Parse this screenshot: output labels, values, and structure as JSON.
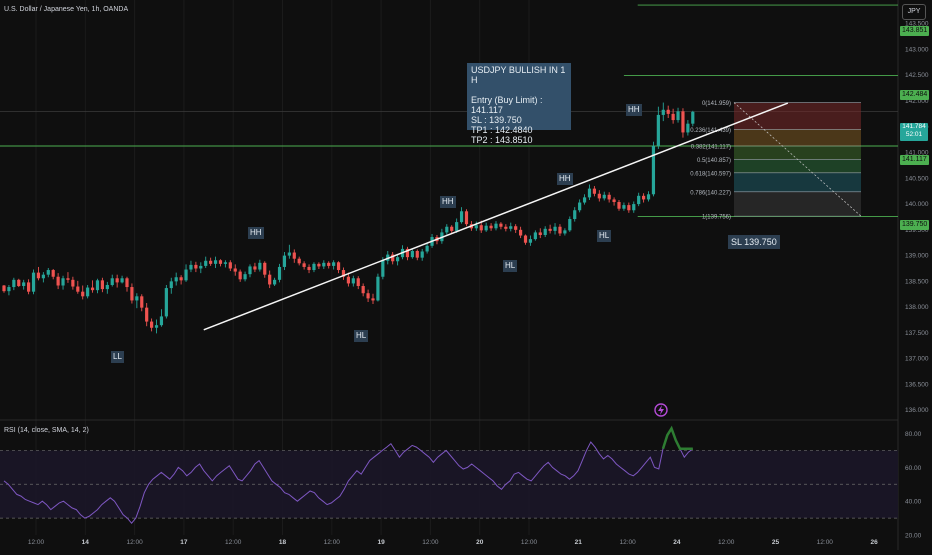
{
  "header": {
    "symbol_title": "U.S. Dollar / Japanese Yen, 1h, OANDA",
    "currency_button": "JPY"
  },
  "setup_box": {
    "title": "USDJPY BULLISH IN 1 H",
    "entry": "Entry (Buy Limit) :  141.117",
    "sl": "SL : 139.750",
    "tp1": "TP1 :  142.4840",
    "tp2": "TP2 :  143.8510"
  },
  "sl_note": "SL 139.750",
  "pivot_labels": [
    "LL",
    "HH",
    "HL",
    "HH",
    "HL",
    "HH",
    "HL",
    "HH"
  ],
  "current_price": {
    "price": "141.784",
    "countdown": "52:01",
    "color": "#26a69a"
  },
  "level_badges": [
    {
      "text": "143.851",
      "color": "#4caf50"
    },
    {
      "text": "142.484",
      "color": "#4caf50"
    },
    {
      "text": "141.117",
      "color": "#4caf50"
    },
    {
      "text": "139.750",
      "color": "#4caf50"
    }
  ],
  "fib_levels": [
    {
      "ratio": "0",
      "label": "0(141.959)",
      "value": 141.959
    },
    {
      "ratio": "0.236",
      "label": "0.236(141.439)",
      "value": 141.439
    },
    {
      "ratio": "0.382",
      "label": "0.382(141.117)",
      "value": 141.117
    },
    {
      "ratio": "0.5",
      "label": "0.5(140.857)",
      "value": 140.857
    },
    {
      "ratio": "0.618",
      "label": "0.618(140.597)",
      "value": 140.597
    },
    {
      "ratio": "0.786",
      "label": "0.786(140.227)",
      "value": 140.227
    },
    {
      "ratio": "1",
      "label": "1(139.756)",
      "value": 139.756
    }
  ],
  "rsi": {
    "title": "RSI (14, close, SMA, 14, 2)",
    "ticks": [
      "80.00",
      "60.00",
      "40.00",
      "20.00"
    ]
  },
  "chart_data": {
    "type": "candlestick",
    "title": "U.S. Dollar / Japanese Yen, 1h, OANDA",
    "y_ticks": [
      "143.500",
      "143.000",
      "142.500",
      "142.000",
      "141.500",
      "141.000",
      "140.500",
      "140.000",
      "139.500",
      "139.000",
      "138.500",
      "138.000",
      "137.500",
      "137.000",
      "136.500",
      "136.000"
    ],
    "x_ticks": [
      "12:00",
      "14",
      "12:00",
      "17",
      "12:00",
      "18",
      "12:00",
      "19",
      "12:00",
      "20",
      "12:00",
      "21",
      "12:00",
      "24",
      "12:00",
      "25",
      "12:00",
      "26"
    ],
    "ylim": [
      135.8,
      143.95
    ],
    "horizontal_levels": [
      143.851,
      142.484,
      141.117,
      139.75
    ],
    "pivots": [
      {
        "label": "LL",
        "price": 137.48
      },
      {
        "label": "HH",
        "price": 139.2
      },
      {
        "label": "HL",
        "price": 137.55
      },
      {
        "label": "HH",
        "price": 139.93
      },
      {
        "label": "HL",
        "price": 139.18
      },
      {
        "label": "HH",
        "price": 140.37
      },
      {
        "label": "HL",
        "price": 139.76
      },
      {
        "label": "HH",
        "price": 141.96
      }
    ],
    "trendline": {
      "from": 137.55,
      "to": 141.95
    },
    "rsi_levels": [
      70,
      50,
      30
    ],
    "rsi_ylim": [
      20,
      88
    ],
    "rsi_values": [
      52,
      50,
      47,
      44,
      43,
      41,
      40,
      39,
      38,
      40,
      38,
      35,
      37,
      39,
      40,
      38,
      36,
      35,
      32,
      30,
      31,
      33,
      35,
      38,
      40,
      42,
      40,
      36,
      32,
      30,
      27,
      30,
      37,
      45,
      50,
      53,
      55,
      57,
      55,
      53,
      56,
      60,
      58,
      55,
      57,
      60,
      62,
      58,
      55,
      52,
      55,
      57,
      59,
      61,
      57,
      53,
      52,
      55,
      58,
      62,
      64,
      60,
      56,
      52,
      50,
      48,
      45,
      44,
      42,
      40,
      42,
      44,
      46,
      45,
      42,
      40,
      38,
      39,
      41,
      43,
      47,
      52,
      55,
      58,
      56,
      60,
      64,
      66,
      68,
      70,
      72,
      74,
      70,
      66,
      69,
      71,
      73,
      72,
      70,
      68,
      66,
      63,
      66,
      68,
      70,
      67,
      64,
      61,
      59,
      60,
      62,
      60,
      58,
      56,
      54,
      52,
      49,
      47,
      50,
      52,
      56,
      57,
      55,
      53,
      52,
      55,
      58,
      61,
      63,
      60,
      58,
      56,
      55,
      53,
      55,
      58,
      64,
      70,
      75,
      72,
      68,
      65,
      67,
      65,
      62,
      60,
      58,
      56,
      55,
      57,
      60,
      63,
      66,
      60,
      59,
      71,
      79,
      83,
      76,
      71,
      66,
      69,
      71
    ],
    "candles": [
      [
        138.41,
        138.42,
        138.27,
        138.3
      ],
      [
        138.3,
        138.42,
        138.22,
        138.38
      ],
      [
        138.38,
        138.56,
        138.32,
        138.52
      ],
      [
        138.52,
        138.54,
        138.38,
        138.4
      ],
      [
        138.4,
        138.52,
        138.33,
        138.47
      ],
      [
        138.47,
        138.53,
        138.24,
        138.29
      ],
      [
        138.29,
        138.72,
        138.24,
        138.66
      ],
      [
        138.66,
        138.77,
        138.51,
        138.55
      ],
      [
        138.55,
        138.67,
        138.47,
        138.62
      ],
      [
        138.62,
        138.75,
        138.57,
        138.71
      ],
      [
        138.71,
        138.73,
        138.53,
        138.58
      ],
      [
        138.58,
        138.65,
        138.34,
        138.41
      ],
      [
        138.41,
        138.6,
        138.33,
        138.55
      ],
      [
        138.55,
        138.67,
        138.46,
        138.52
      ],
      [
        138.52,
        138.58,
        138.33,
        138.39
      ],
      [
        138.39,
        138.5,
        138.25,
        138.29
      ],
      [
        138.29,
        138.41,
        138.14,
        138.2
      ],
      [
        138.2,
        138.42,
        138.16,
        138.37
      ],
      [
        138.37,
        138.51,
        138.27,
        138.32
      ],
      [
        138.32,
        138.54,
        138.26,
        138.51
      ],
      [
        138.51,
        138.56,
        138.28,
        138.34
      ],
      [
        138.34,
        138.48,
        138.25,
        138.42
      ],
      [
        138.42,
        138.62,
        138.39,
        138.55
      ],
      [
        138.55,
        138.62,
        138.37,
        138.47
      ],
      [
        138.47,
        138.6,
        138.45,
        138.55
      ],
      [
        138.55,
        138.58,
        138.29,
        138.38
      ],
      [
        138.38,
        138.45,
        138.06,
        138.12
      ],
      [
        138.12,
        138.26,
        137.97,
        138.2
      ],
      [
        138.2,
        138.24,
        137.91,
        137.98
      ],
      [
        137.98,
        138.07,
        137.62,
        137.71
      ],
      [
        137.71,
        137.77,
        137.52,
        137.59
      ],
      [
        137.59,
        137.75,
        137.48,
        137.64
      ],
      [
        137.64,
        137.95,
        137.61,
        137.81
      ],
      [
        137.81,
        138.42,
        137.77,
        138.36
      ],
      [
        138.36,
        138.56,
        138.25,
        138.49
      ],
      [
        138.49,
        138.66,
        138.41,
        138.57
      ],
      [
        138.57,
        138.61,
        138.43,
        138.51
      ],
      [
        138.51,
        138.82,
        138.48,
        138.72
      ],
      [
        138.72,
        138.89,
        138.67,
        138.81
      ],
      [
        138.81,
        138.87,
        138.67,
        138.74
      ],
      [
        138.74,
        138.86,
        138.65,
        138.79
      ],
      [
        138.79,
        138.97,
        138.75,
        138.89
      ],
      [
        138.89,
        138.95,
        138.79,
        138.83
      ],
      [
        138.83,
        138.97,
        138.75,
        138.9
      ],
      [
        138.9,
        138.92,
        138.78,
        138.83
      ],
      [
        138.83,
        138.9,
        138.76,
        138.86
      ],
      [
        138.86,
        138.9,
        138.69,
        138.74
      ],
      [
        138.74,
        138.82,
        138.6,
        138.68
      ],
      [
        138.68,
        138.72,
        138.48,
        138.53
      ],
      [
        138.53,
        138.68,
        138.49,
        138.63
      ],
      [
        138.63,
        138.82,
        138.57,
        138.78
      ],
      [
        138.78,
        138.85,
        138.67,
        138.72
      ],
      [
        138.72,
        138.91,
        138.68,
        138.85
      ],
      [
        138.85,
        138.88,
        138.56,
        138.62
      ],
      [
        138.62,
        138.7,
        138.36,
        138.43
      ],
      [
        138.43,
        138.56,
        138.4,
        138.52
      ],
      [
        138.52,
        138.83,
        138.47,
        138.77
      ],
      [
        138.77,
        139.06,
        138.71,
        138.99
      ],
      [
        138.99,
        139.2,
        138.93,
        139.05
      ],
      [
        139.05,
        139.11,
        138.85,
        138.93
      ],
      [
        138.93,
        138.97,
        138.8,
        138.84
      ],
      [
        138.84,
        138.88,
        138.72,
        138.77
      ],
      [
        138.77,
        138.82,
        138.65,
        138.71
      ],
      [
        138.71,
        138.86,
        138.67,
        138.83
      ],
      [
        138.83,
        138.86,
        138.73,
        138.78
      ],
      [
        138.78,
        138.9,
        138.73,
        138.85
      ],
      [
        138.85,
        138.88,
        138.74,
        138.79
      ],
      [
        138.79,
        138.9,
        138.72,
        138.86
      ],
      [
        138.86,
        138.88,
        138.65,
        138.71
      ],
      [
        138.71,
        138.76,
        138.52,
        138.58
      ],
      [
        138.58,
        138.66,
        138.39,
        138.45
      ],
      [
        138.45,
        138.6,
        138.39,
        138.55
      ],
      [
        138.55,
        138.59,
        138.34,
        138.4
      ],
      [
        138.4,
        138.45,
        138.2,
        138.26
      ],
      [
        138.26,
        138.33,
        138.09,
        138.16
      ],
      [
        138.16,
        138.25,
        138.05,
        138.12
      ],
      [
        138.12,
        138.64,
        138.1,
        138.58
      ],
      [
        138.58,
        138.96,
        138.53,
        138.89
      ],
      [
        138.89,
        139.08,
        138.82,
        139.01
      ],
      [
        139.01,
        139.06,
        138.82,
        138.88
      ],
      [
        138.88,
        139.02,
        138.8,
        138.96
      ],
      [
        138.96,
        139.19,
        138.92,
        139.12
      ],
      [
        139.12,
        139.16,
        138.9,
        138.96
      ],
      [
        138.96,
        139.12,
        138.93,
        139.08
      ],
      [
        139.08,
        139.11,
        138.9,
        138.95
      ],
      [
        138.95,
        139.12,
        138.89,
        139.07
      ],
      [
        139.07,
        139.24,
        139.03,
        139.18
      ],
      [
        139.18,
        139.41,
        139.14,
        139.35
      ],
      [
        139.35,
        139.39,
        139.21,
        139.27
      ],
      [
        139.27,
        139.51,
        139.22,
        139.44
      ],
      [
        139.44,
        139.6,
        139.4,
        139.55
      ],
      [
        139.55,
        139.58,
        139.42,
        139.47
      ],
      [
        139.47,
        139.71,
        139.43,
        139.64
      ],
      [
        139.64,
        139.93,
        139.61,
        139.85
      ],
      [
        139.85,
        139.89,
        139.56,
        139.6
      ],
      [
        139.6,
        139.66,
        139.47,
        139.52
      ],
      [
        139.52,
        139.65,
        139.47,
        139.58
      ],
      [
        139.58,
        139.67,
        139.43,
        139.48
      ],
      [
        139.48,
        139.63,
        139.45,
        139.57
      ],
      [
        139.57,
        139.62,
        139.47,
        139.52
      ],
      [
        139.52,
        139.66,
        139.48,
        139.61
      ],
      [
        139.61,
        139.64,
        139.5,
        139.55
      ],
      [
        139.55,
        139.6,
        139.46,
        139.51
      ],
      [
        139.51,
        139.63,
        139.46,
        139.56
      ],
      [
        139.56,
        139.6,
        139.43,
        139.49
      ],
      [
        139.49,
        139.55,
        139.33,
        139.38
      ],
      [
        139.38,
        139.4,
        139.2,
        139.24
      ],
      [
        139.24,
        139.38,
        139.18,
        139.31
      ],
      [
        139.31,
        139.48,
        139.28,
        139.44
      ],
      [
        139.44,
        139.52,
        139.33,
        139.39
      ],
      [
        139.39,
        139.56,
        139.35,
        139.51
      ],
      [
        139.51,
        139.59,
        139.42,
        139.47
      ],
      [
        139.47,
        139.62,
        139.4,
        139.55
      ],
      [
        139.55,
        139.6,
        139.37,
        139.42
      ],
      [
        139.42,
        139.52,
        139.38,
        139.48
      ],
      [
        139.48,
        139.75,
        139.45,
        139.7
      ],
      [
        139.7,
        139.93,
        139.65,
        139.87
      ],
      [
        139.87,
        140.08,
        139.83,
        140.02
      ],
      [
        140.02,
        140.18,
        139.98,
        140.12
      ],
      [
        140.12,
        140.37,
        140.07,
        140.29
      ],
      [
        140.29,
        140.34,
        140.14,
        140.19
      ],
      [
        140.19,
        140.26,
        140.04,
        140.1
      ],
      [
        140.1,
        140.23,
        140.06,
        140.17
      ],
      [
        140.17,
        140.22,
        140.02,
        140.08
      ],
      [
        140.08,
        140.12,
        139.96,
        140.03
      ],
      [
        140.03,
        140.07,
        139.86,
        139.9
      ],
      [
        139.9,
        140.02,
        139.86,
        139.97
      ],
      [
        139.97,
        140.02,
        139.82,
        139.87
      ],
      [
        139.87,
        140.04,
        139.82,
        139.99
      ],
      [
        139.99,
        140.21,
        139.95,
        140.15
      ],
      [
        140.15,
        140.2,
        140.02,
        140.08
      ],
      [
        140.08,
        140.24,
        140.04,
        140.18
      ],
      [
        140.18,
        141.2,
        140.14,
        141.12
      ],
      [
        141.12,
        141.88,
        141.06,
        141.72
      ],
      [
        141.72,
        141.96,
        141.6,
        141.82
      ],
      [
        141.82,
        141.9,
        141.66,
        141.74
      ],
      [
        141.74,
        141.84,
        141.55,
        141.62
      ],
      [
        141.62,
        141.86,
        141.57,
        141.79
      ],
      [
        141.79,
        141.85,
        141.28,
        141.38
      ],
      [
        141.38,
        141.62,
        141.32,
        141.55
      ],
      [
        141.55,
        141.8,
        141.5,
        141.78
      ]
    ]
  }
}
